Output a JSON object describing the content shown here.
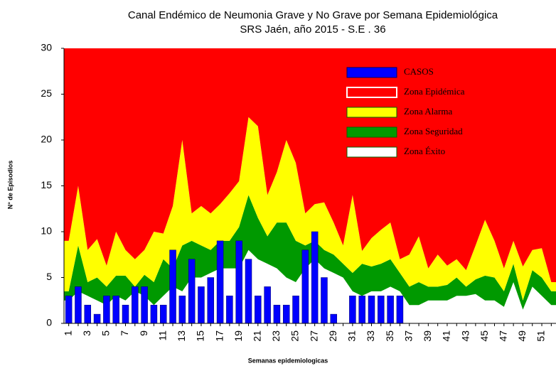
{
  "chart_data": {
    "type": "area",
    "title": "Canal Endémico de Neumonia Grave y No Grave por Semana Epidemiológica",
    "subtitle": "SRS Jaén, año 2015 - S.E . 36",
    "y_label": "N° de Episodios",
    "x_label": "Semanas epidemiologicas",
    "categories": [
      1,
      null,
      3,
      null,
      5,
      null,
      7,
      null,
      9,
      null,
      11,
      null,
      13,
      null,
      15,
      null,
      17,
      null,
      19,
      null,
      21,
      null,
      23,
      null,
      25,
      null,
      27,
      null,
      29,
      null,
      31,
      null,
      33,
      null,
      35,
      null,
      37,
      null,
      39,
      null,
      41,
      null,
      43,
      null,
      45,
      null,
      47,
      null,
      49,
      null,
      51,
      null
    ],
    "ylim": [
      0,
      30
    ],
    "yticks": [
      0,
      5,
      10,
      15,
      20,
      25,
      30
    ],
    "series": [
      {
        "name": "CASOS",
        "type": "bar",
        "color": "#0000ff",
        "values": [
          3,
          4,
          2,
          1,
          3,
          3,
          2,
          4,
          4,
          2,
          2,
          8,
          3,
          7,
          4,
          5,
          9,
          3,
          9,
          7,
          3,
          4,
          2,
          2,
          3,
          8,
          10,
          5,
          1,
          0,
          3,
          3,
          3,
          3,
          3,
          3,
          null,
          null,
          null,
          null,
          null,
          null,
          null,
          null,
          null,
          null,
          null,
          null,
          null,
          null,
          null,
          null
        ]
      },
      {
        "name": "Zona Epidémica",
        "type": "area",
        "color": "#ff0000"
      },
      {
        "name": "Zona Alarma",
        "type": "area",
        "color": "#ffff00",
        "values": [
          5.5,
          6.5,
          3.5,
          4.2,
          2.3,
          4.8,
          2.8,
          3,
          2.7,
          5.5,
          2.8,
          6.8,
          11.5,
          3,
          4.3,
          4,
          4,
          5.2,
          5,
          8.5,
          10,
          4.5,
          5.5,
          9,
          8.5,
          3.5,
          4,
          5.2,
          3.5,
          2,
          8.5,
          1.4,
          3.1,
          3.7,
          4,
          1.5,
          3.5,
          5,
          2,
          3.5,
          2.1,
          2,
          1.8,
          3.7,
          6.1,
          4,
          2.5,
          2.5,
          3.7,
          2.2,
          3.2,
          1
        ]
      },
      {
        "name": "Zona Seguridad",
        "type": "area",
        "color": "#009900",
        "values": [
          1,
          5,
          1.5,
          2.5,
          2,
          2.2,
          2.7,
          0.5,
          2.3,
          2.5,
          4,
          2,
          5,
          4,
          3.5,
          2.5,
          3,
          3,
          4.5,
          6,
          4.5,
          3,
          5,
          6,
          4.5,
          2.5,
          2,
          2,
          2,
          1.5,
          2,
          3.5,
          2.7,
          3,
          3,
          2,
          2,
          2.5,
          1.5,
          1.5,
          1.7,
          2,
          1,
          1.6,
          2.7,
          2.5,
          1.7,
          2,
          1,
          1.8,
          2,
          1.5
        ]
      },
      {
        "name": "Zona Éxito",
        "type": "area",
        "color": "#ffffff",
        "values": [
          2.5,
          3.5,
          3,
          2.5,
          2,
          3,
          2.5,
          3.5,
          3,
          2,
          3,
          4,
          3.5,
          5,
          5,
          5.5,
          6,
          6,
          6,
          8,
          7,
          6.5,
          6,
          5,
          4.5,
          6,
          7,
          6,
          5.5,
          5,
          3.5,
          3,
          3.5,
          3.5,
          4,
          3.5,
          2,
          2,
          2.5,
          2.5,
          2.5,
          3,
          3,
          3.2,
          2.5,
          2.5,
          1.8,
          4.5,
          1.5,
          4,
          3,
          2
        ]
      }
    ]
  }
}
